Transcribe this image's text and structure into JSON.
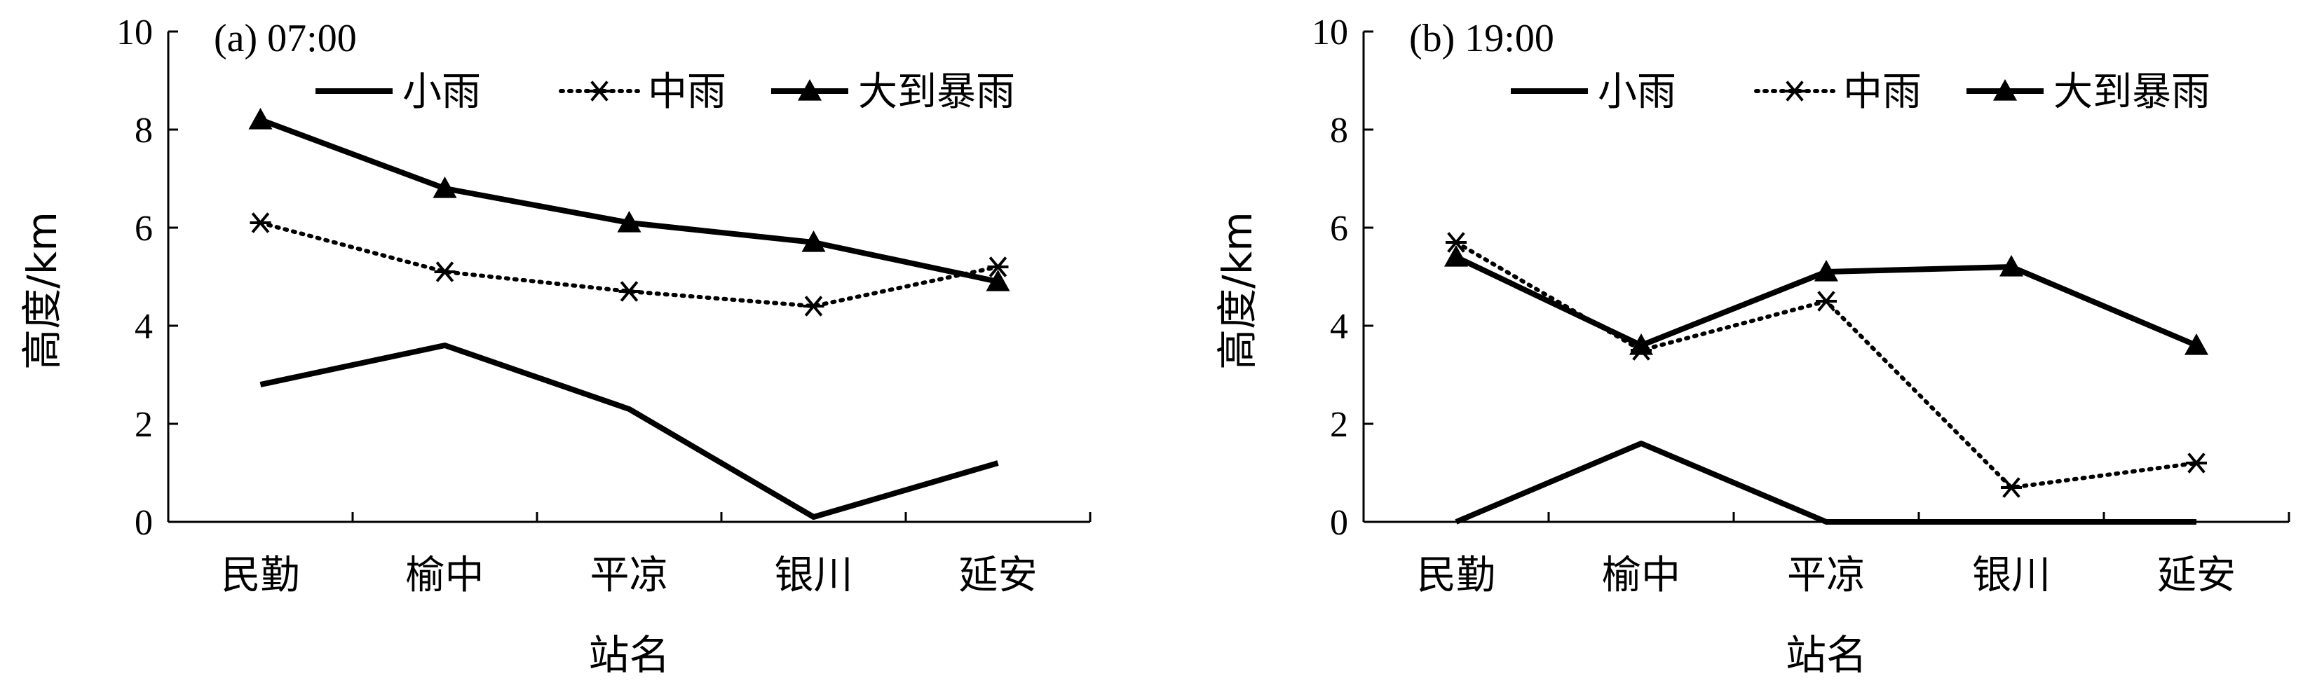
{
  "chart_data": [
    {
      "type": "line",
      "panel_label": "(a) 07:00",
      "categories": [
        "民勤",
        "榆中",
        "平凉",
        "银川",
        "延安"
      ],
      "xlabel": "站名",
      "ylabel": "高度/km",
      "ylim": [
        0,
        10
      ],
      "yticks": [
        "0",
        "2",
        "4",
        "6",
        "8",
        "10"
      ],
      "legend_position": "top",
      "grid": false,
      "series": [
        {
          "name": "小雨",
          "style": "solid",
          "marker": "none",
          "values": [
            2.8,
            3.6,
            2.3,
            0.1,
            1.2
          ]
        },
        {
          "name": "中雨",
          "style": "dotted",
          "marker": "asterisk",
          "values": [
            6.1,
            5.1,
            4.7,
            4.4,
            5.2
          ]
        },
        {
          "name": "大到暴雨",
          "style": "solid",
          "marker": "triangle",
          "values": [
            8.2,
            6.8,
            6.1,
            5.7,
            4.9
          ]
        }
      ]
    },
    {
      "type": "line",
      "panel_label": "(b) 19:00",
      "categories": [
        "民勤",
        "榆中",
        "平凉",
        "银川",
        "延安"
      ],
      "xlabel": "站名",
      "ylabel": "高度/km",
      "ylim": [
        0,
        10
      ],
      "yticks": [
        "0",
        "2",
        "4",
        "6",
        "8",
        "10"
      ],
      "legend_position": "top",
      "grid": false,
      "series": [
        {
          "name": "小雨",
          "style": "solid",
          "marker": "none",
          "values": [
            0.0,
            1.6,
            0.0,
            0.0,
            0.0
          ]
        },
        {
          "name": "中雨",
          "style": "dotted",
          "marker": "asterisk",
          "values": [
            5.7,
            3.5,
            4.5,
            0.7,
            1.2
          ]
        },
        {
          "name": "大到暴雨",
          "style": "solid",
          "marker": "triangle",
          "values": [
            5.4,
            3.6,
            5.1,
            5.2,
            3.6
          ]
        }
      ]
    }
  ]
}
